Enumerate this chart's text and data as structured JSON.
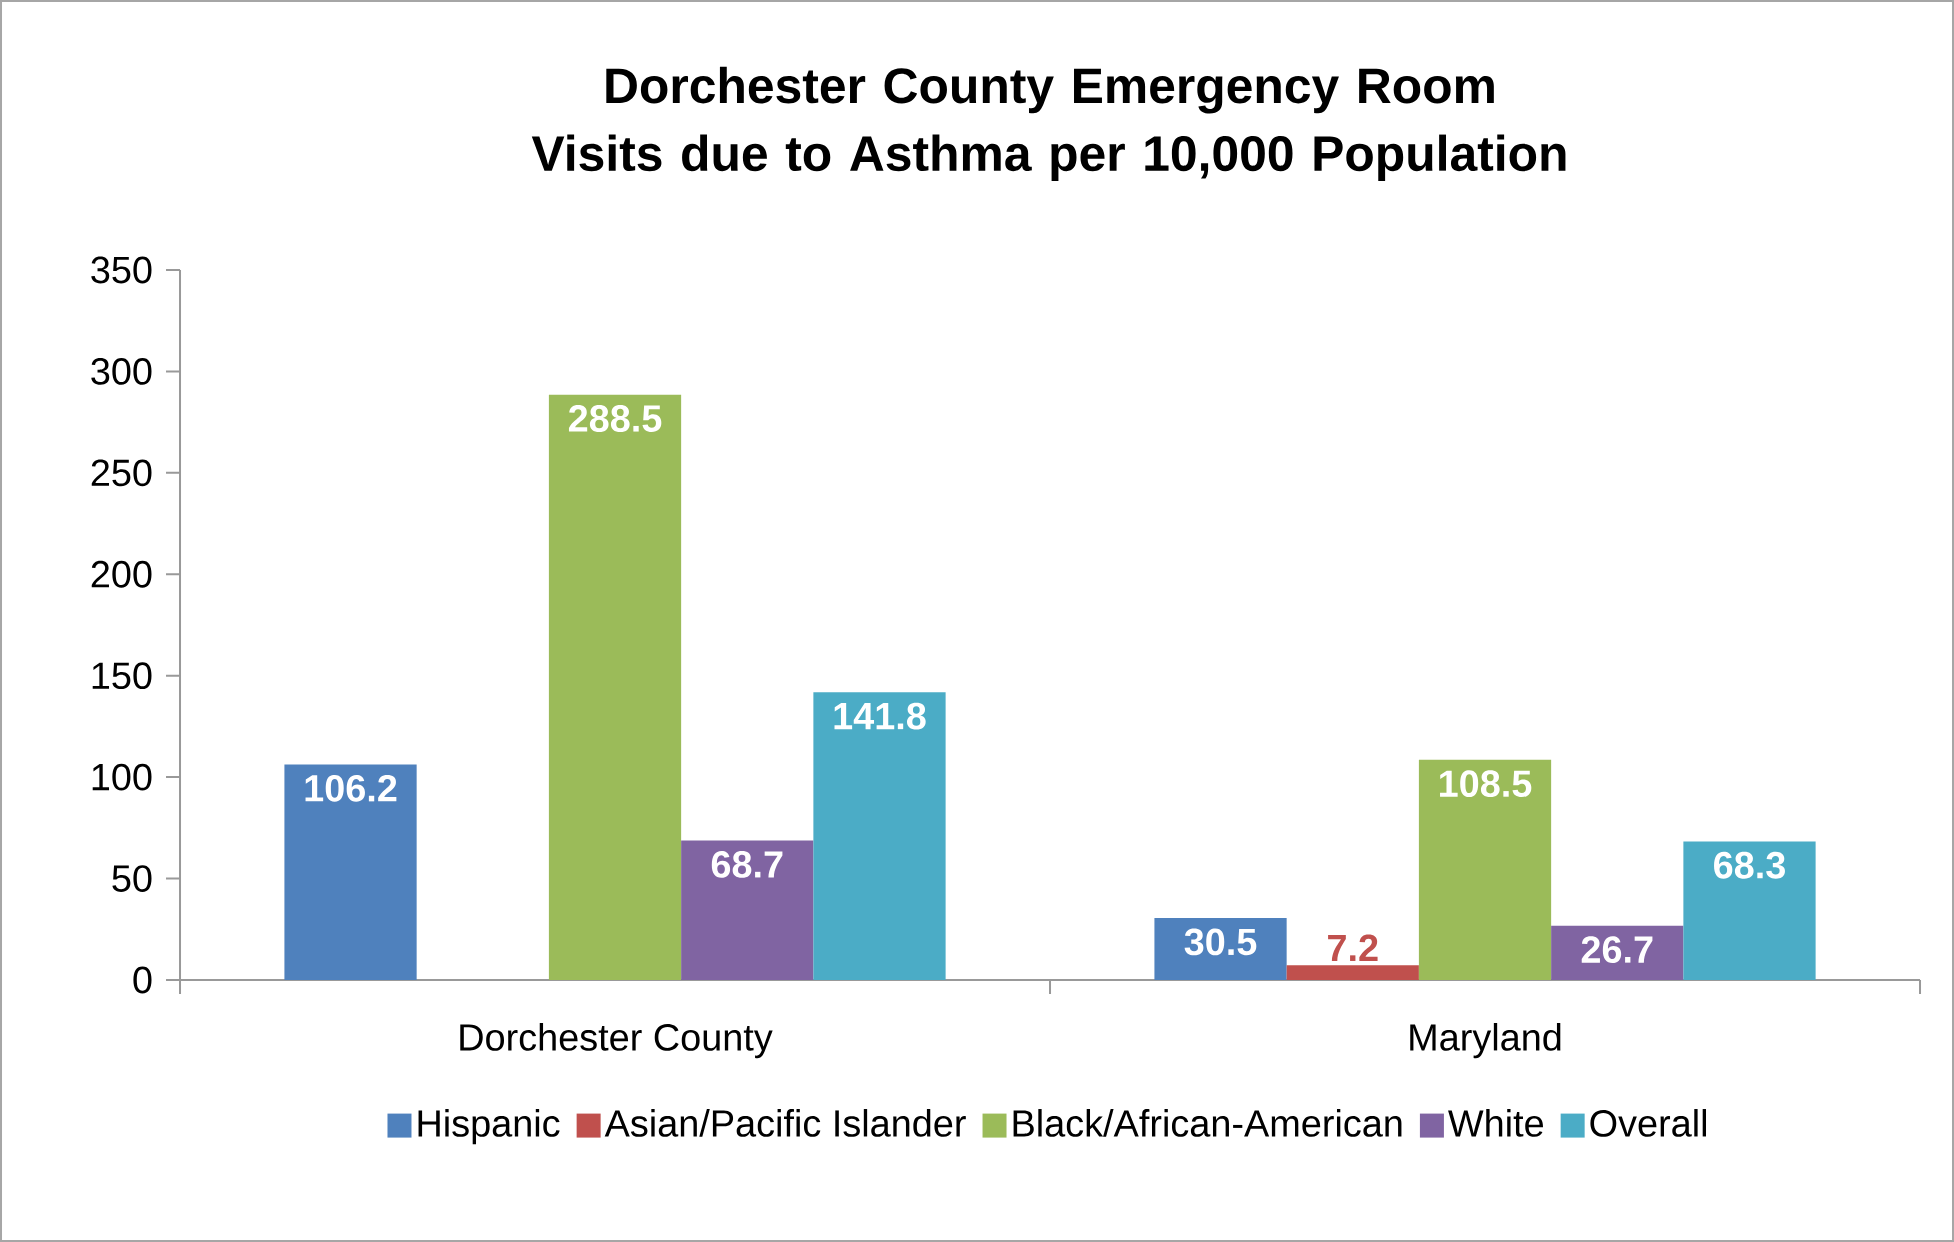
{
  "chart_data": {
    "type": "bar",
    "title": "Dorchester County Emergency Room Visits due to Asthma per 10,000 Population",
    "categories": [
      "Dorchester County",
      "Maryland"
    ],
    "series": [
      {
        "name": "Hispanic",
        "color": "#4f81bd",
        "values": [
          106.2,
          30.5
        ]
      },
      {
        "name": "Asian/Pacific Islander",
        "color": "#c0504d",
        "values": [
          null,
          7.2
        ]
      },
      {
        "name": "Black/African-American",
        "color": "#9bbb59",
        "values": [
          288.5,
          108.5
        ]
      },
      {
        "name": "White",
        "color": "#8064a2",
        "values": [
          68.7,
          26.7
        ]
      },
      {
        "name": "Overall",
        "color": "#4bacc6",
        "values": [
          141.8,
          68.3
        ]
      }
    ],
    "ylim": [
      0,
      350
    ],
    "yticks": [
      0,
      50,
      100,
      150,
      200,
      250,
      300,
      350
    ],
    "data_labels": true,
    "legend": "bottom",
    "grid": false
  }
}
